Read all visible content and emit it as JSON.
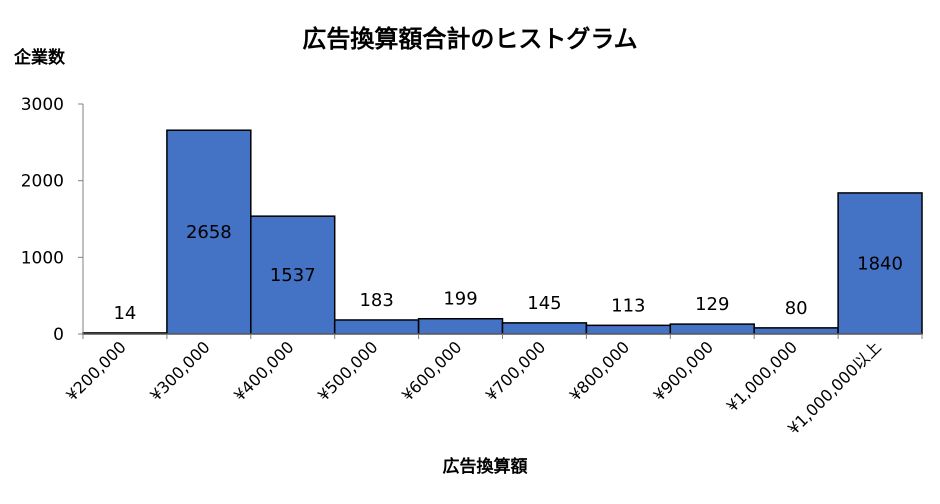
{
  "chart_data": {
    "type": "bar",
    "title": "広告換算額合計のヒストグラム",
    "xlabel": "広告換算額",
    "ylabel": "企業数",
    "categories": [
      "¥200,000",
      "¥300,000",
      "¥400,000",
      "¥500,000",
      "¥600,000",
      "¥700,000",
      "¥800,000",
      "¥900,000",
      "¥1,000,000",
      "¥1,000,000以上"
    ],
    "values": [
      14,
      2658,
      1537,
      183,
      199,
      145,
      113,
      129,
      80,
      1840
    ],
    "ylim": [
      0,
      3000
    ],
    "yticks": [
      "0",
      "1000",
      "2000",
      "3000"
    ],
    "grid": false,
    "legend": "none",
    "bar_color": "#4472C4",
    "bar_edge_color": "#000000"
  }
}
